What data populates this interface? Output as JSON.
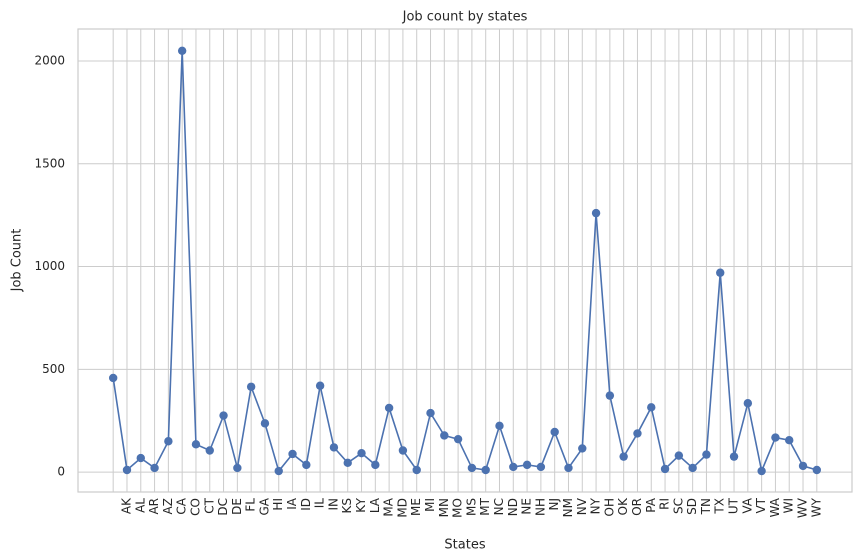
{
  "chart_data": {
    "type": "line",
    "title": "Job count by states",
    "xlabel": "States",
    "ylabel": "Job Count",
    "categories": [
      null,
      "AK",
      "AL",
      "AR",
      "AZ",
      "CA",
      "CO",
      "CT",
      "DC",
      "DE",
      "FL",
      "GA",
      "HI",
      "IA",
      "ID",
      "IL",
      "IN",
      "KS",
      "KY",
      "LA",
      "MA",
      "MD",
      "ME",
      "MI",
      "MN",
      "MO",
      "MS",
      "MT",
      "NC",
      "ND",
      "NE",
      "NH",
      "NJ",
      "NM",
      "NV",
      "NY",
      "OH",
      "OK",
      "OR",
      "PA",
      "RI",
      "SC",
      "SD",
      "TN",
      "TX",
      "UT",
      "VA",
      "VT",
      "WA",
      "WI",
      "WV",
      "WY"
    ],
    "series": [
      {
        "name": "Job Count",
        "color": "#4c72b0",
        "values": [
          458,
          10,
          68,
          20,
          150,
          2050,
          135,
          105,
          275,
          20,
          415,
          237,
          5,
          88,
          35,
          420,
          120,
          45,
          92,
          35,
          312,
          105,
          10,
          287,
          178,
          160,
          20,
          10,
          225,
          25,
          35,
          25,
          195,
          20,
          115,
          1260,
          372,
          75,
          188,
          315,
          15,
          80,
          20,
          85,
          970,
          75,
          335,
          5,
          168,
          155,
          30,
          10
        ]
      }
    ],
    "ylim": [
      -97,
      2156
    ],
    "yticks": [
      0,
      500,
      1000,
      1500,
      2000
    ],
    "grid": true,
    "marker": "o"
  }
}
